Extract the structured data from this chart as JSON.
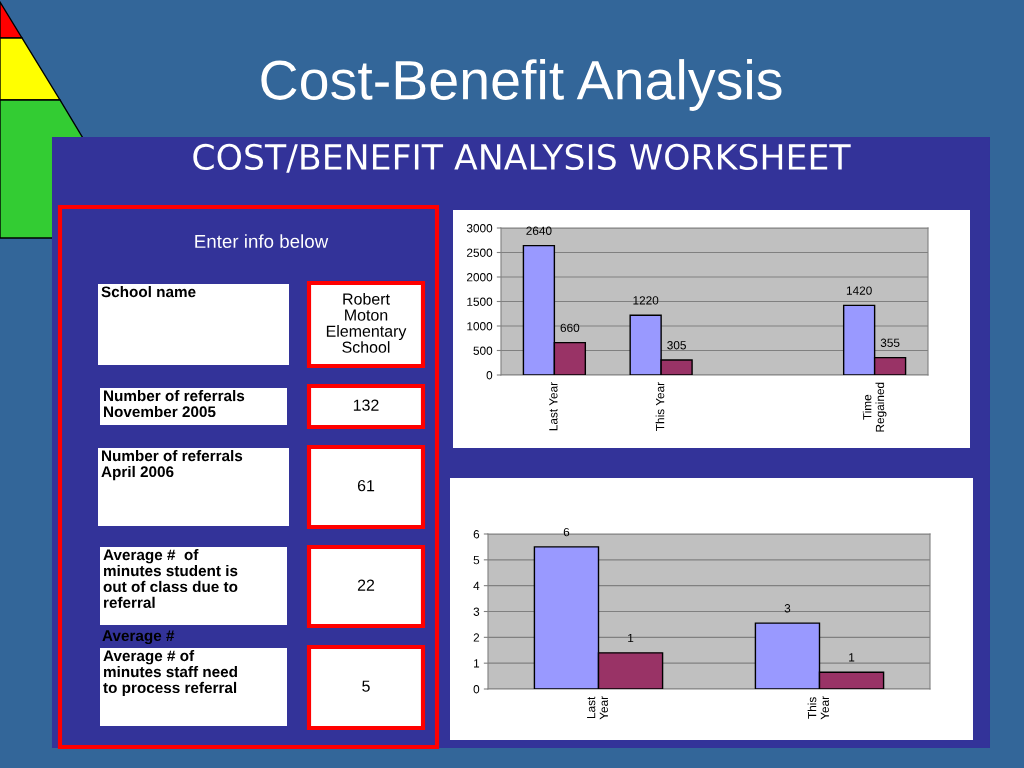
{
  "chart_data": [
    {
      "type": "other",
      "title": "Cost-Benefit Analysis",
      "subtitle": "COST/BENEFIT ANALYSIS WORKSHEET",
      "annotations": [
        "Enter info below",
        "School name",
        "Robert\nMoton\nElementary\nSchool",
        "Number of referrals\nNovember 2005",
        "132",
        "Number of referrals\nApril 2006",
        "61",
        "Average #  of\nminutes student is\nout of class due to\nreferral",
        "22",
        "Average #",
        "Average # of\nminutes staff need\nto process referral",
        "5"
      ]
    },
    {
      "type": "bar",
      "categories": [
        "Last Year",
        "This Year",
        null,
        "Time\nRegained"
      ],
      "series": [
        {
          "color": "#9999ff",
          "values": [
            2640,
            1220,
            null,
            1420
          ]
        },
        {
          "color": "#993366",
          "values": [
            660,
            305,
            null,
            355
          ]
        }
      ],
      "ylim": [
        0,
        3000
      ],
      "yticks": [
        0,
        500,
        1000,
        1500,
        2000,
        2500,
        3000
      ],
      "grid": "y",
      "data_labels": true
    },
    {
      "type": "bar",
      "categories": [
        "Last\nYear",
        "This\nYear"
      ],
      "series": [
        {
          "color": "#9999ff",
          "values": [
            5.5,
            2.55
          ],
          "value_labels": [
            "6",
            "3"
          ]
        },
        {
          "color": "#993366",
          "values": [
            1.4,
            0.65
          ],
          "value_labels": [
            "1",
            "1"
          ]
        }
      ],
      "ylim": [
        0,
        6
      ],
      "yticks": [
        0,
        1,
        2,
        3,
        4,
        5,
        6
      ],
      "grid": "y"
    }
  ]
}
